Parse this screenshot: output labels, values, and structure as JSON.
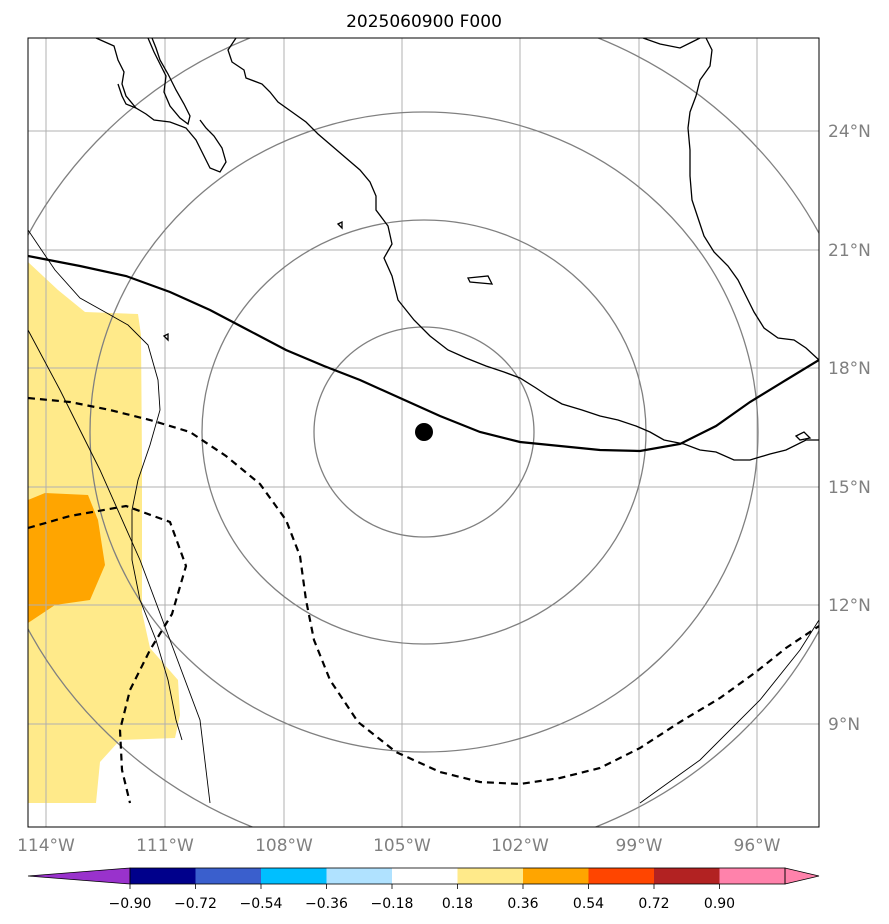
{
  "title": "2025060900 F000",
  "lon_ticks": [
    "114°W",
    "111°W",
    "108°W",
    "105°W",
    "102°W",
    "99°W",
    "96°W"
  ],
  "lat_ticks": [
    "24°N",
    "21°N",
    "18°N",
    "15°N",
    "12°N",
    "9°N"
  ],
  "colorbar": {
    "levels": [
      "−0.90",
      "−0.72",
      "−0.54",
      "−0.36",
      "−0.18",
      "0.18",
      "0.36",
      "0.54",
      "0.72",
      "0.90"
    ],
    "colors": [
      "#9932cc",
      "#00008b",
      "#3a5fcd",
      "#00bfff",
      "#b0e2ff",
      "#ffffff",
      "#ffea8a",
      "#ffa500",
      "#ff4500",
      "#b22222",
      "#ff82ab"
    ]
  },
  "colors": {
    "fill_light": "#ffea8a",
    "fill_orange": "#ffa500",
    "range_rings": "#808080",
    "gridlines": "#b0b0b0",
    "tick_label": "#808080"
  },
  "storm_center": {
    "lon": -104.4,
    "lat": 16.3
  }
}
